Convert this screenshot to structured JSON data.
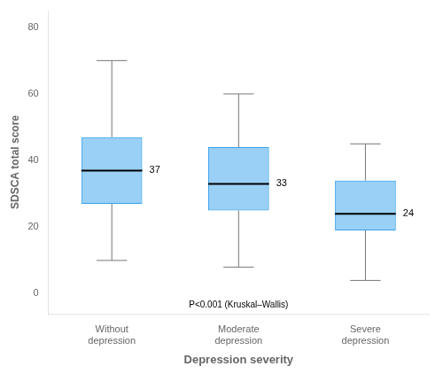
{
  "chart_data": {
    "type": "box",
    "categories": [
      "Without\ndepression",
      "Moderate\ndepression",
      "Severe\ndepression"
    ],
    "boxes": [
      {
        "q1": 27,
        "median": 37,
        "q3": 47,
        "whislo": 10,
        "whishi": 70
      },
      {
        "q1": 25,
        "median": 33,
        "q3": 44,
        "whislo": 8,
        "whishi": 60
      },
      {
        "q1": 19,
        "median": 24,
        "q3": 34,
        "whislo": 4,
        "whishi": 45
      }
    ],
    "data_labels": true,
    "ylabel": "SDSCA total score",
    "xlabel": "Depression severity",
    "annotation": "P<0.001 (Kruskal–Wallis)",
    "ylim": [
      -6,
      85
    ],
    "yticks": [
      0,
      20,
      40,
      60,
      80
    ],
    "grid": false
  }
}
